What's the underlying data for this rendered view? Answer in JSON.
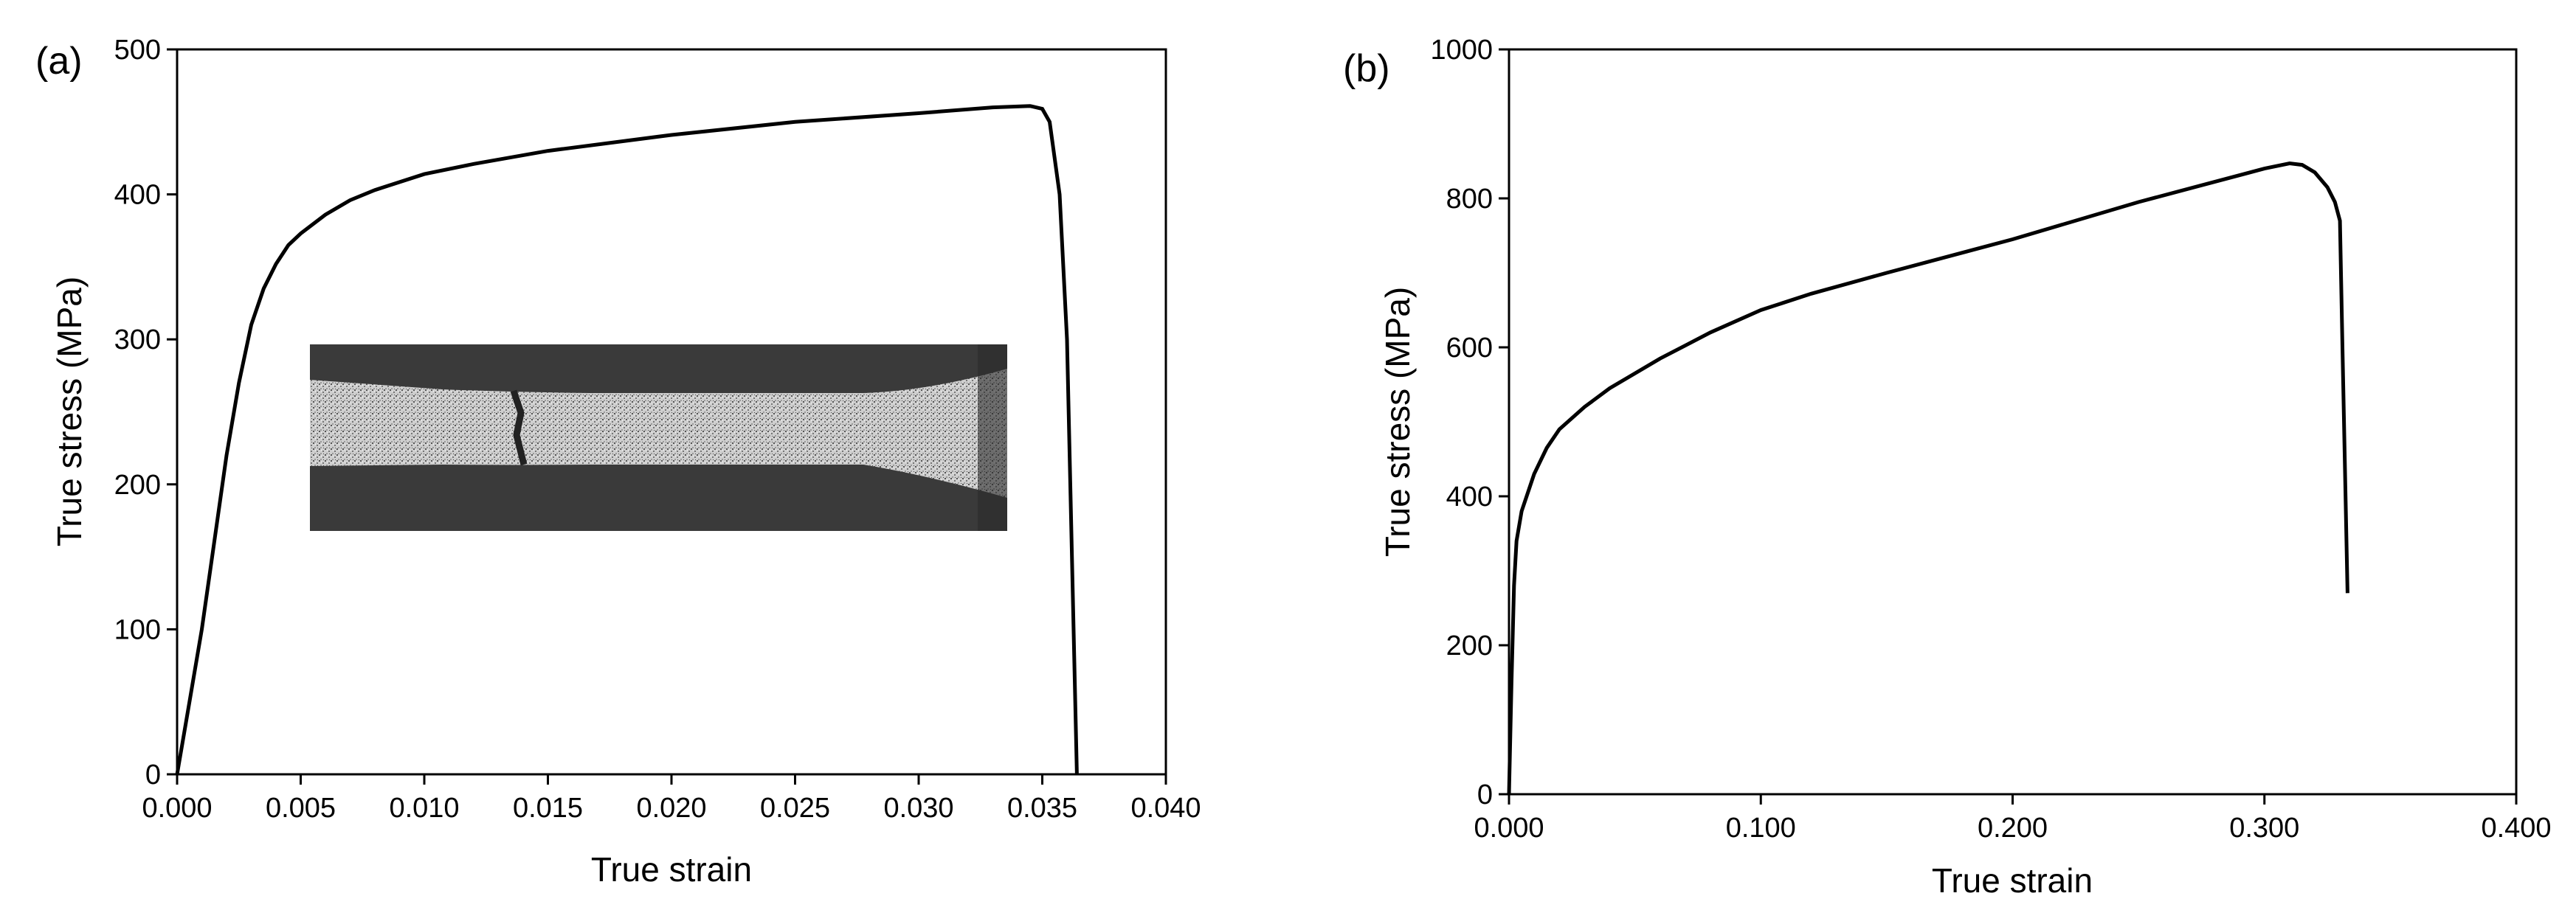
{
  "chart_data": [
    {
      "panel_label": "(a)",
      "type": "line",
      "xlabel": "True strain",
      "ylabel": "True stress (MPa)",
      "xlim": [
        0,
        0.04
      ],
      "ylim": [
        0,
        500
      ],
      "xticks": [
        "0.000",
        "0.005",
        "0.010",
        "0.015",
        "0.020",
        "0.025",
        "0.030",
        "0.035",
        "0.040"
      ],
      "yticks": [
        "0",
        "100",
        "200",
        "300",
        "400",
        "500"
      ],
      "grid": false,
      "legend": "none",
      "inset": "specimen-speckle-image",
      "series": [
        {
          "x": [
            0,
            0.0005,
            0.001,
            0.0015,
            0.002,
            0.0025,
            0.003,
            0.0035,
            0.004,
            0.0045,
            0.005,
            0.006,
            0.007,
            0.008,
            0.01,
            0.012,
            0.015,
            0.02,
            0.025,
            0.03,
            0.033,
            0.0345,
            0.035,
            0.0353,
            0.0357,
            0.036,
            0.0362,
            0.0364
          ],
          "y": [
            0,
            50,
            100,
            160,
            220,
            270,
            310,
            335,
            352,
            365,
            373,
            386,
            396,
            403,
            414,
            421,
            430,
            441,
            450,
            456,
            460,
            461,
            459,
            450,
            400,
            300,
            150,
            0
          ]
        }
      ]
    },
    {
      "panel_label": "(b)",
      "type": "line",
      "xlabel": "True strain",
      "ylabel": "True stress (MPa)",
      "xlim": [
        0,
        0.4
      ],
      "ylim": [
        0,
        1000
      ],
      "xticks": [
        "0.000",
        "0.100",
        "0.200",
        "0.300",
        "0.400"
      ],
      "yticks": [
        "0",
        "200",
        "400",
        "600",
        "800",
        "1000"
      ],
      "grid": false,
      "legend": "none",
      "series": [
        {
          "x": [
            0,
            0.001,
            0.002,
            0.003,
            0.005,
            0.01,
            0.015,
            0.02,
            0.03,
            0.04,
            0.06,
            0.08,
            0.1,
            0.12,
            0.15,
            0.2,
            0.25,
            0.3,
            0.31,
            0.315,
            0.32,
            0.325,
            0.328,
            0.33,
            0.331,
            0.333
          ],
          "y": [
            0,
            150,
            280,
            340,
            380,
            430,
            465,
            490,
            520,
            545,
            585,
            620,
            650,
            672,
            700,
            745,
            795,
            840,
            847,
            845,
            835,
            815,
            795,
            770,
            600,
            270
          ]
        }
      ]
    }
  ]
}
